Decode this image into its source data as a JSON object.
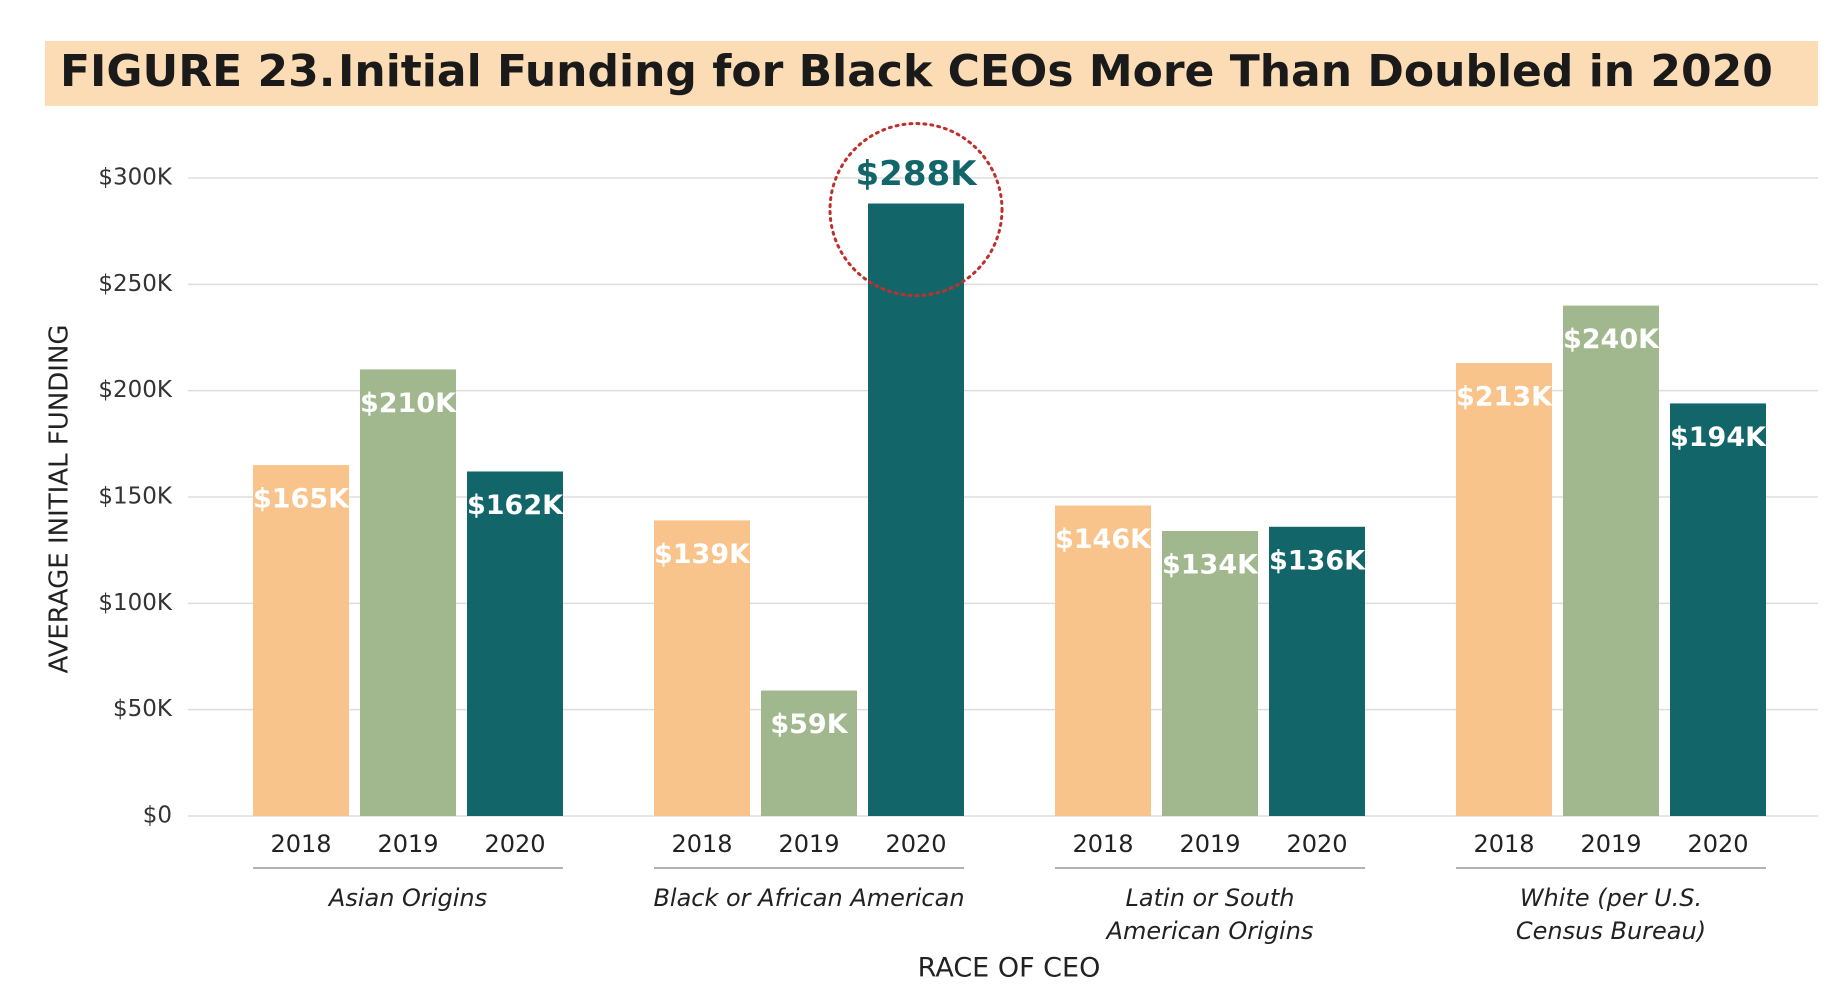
{
  "chart_data": {
    "type": "bar",
    "figure_label": "FIGURE 23.",
    "title": "Initial Funding for Black CEOs More Than Doubled in 2020",
    "y_label": "AVERAGE INITIAL FUNDING",
    "x_label": "RACE OF CEO",
    "categories": [
      "Asian Origins",
      "Black or African American",
      "Latin or South\nAmerican Origins",
      "White (per U.S.\nCensus Bureau)"
    ],
    "series": [
      {
        "name": "2018",
        "color": "#f9c48b",
        "values": [
          165,
          139,
          146,
          213
        ],
        "value_labels": [
          "$165K",
          "$139K",
          "$146K",
          "$213K"
        ]
      },
      {
        "name": "2019",
        "color": "#a1b78d",
        "values": [
          210,
          59,
          134,
          240
        ],
        "value_labels": [
          "$210K",
          "$59K",
          "$134K",
          "$240K"
        ]
      },
      {
        "name": "2020",
        "color": "#12666a",
        "values": [
          162,
          288,
          136,
          194
        ],
        "value_labels": [
          "$162K",
          "$288K",
          "$136K",
          "$194K"
        ]
      }
    ],
    "ylim": [
      0,
      300
    ],
    "yticks": [
      {
        "value": 0,
        "label": "$0"
      },
      {
        "value": 50,
        "label": "$50K"
      },
      {
        "value": 100,
        "label": "$100K"
      },
      {
        "value": 150,
        "label": "$150K"
      },
      {
        "value": 200,
        "label": "$200K"
      },
      {
        "value": 250,
        "label": "$250K"
      },
      {
        "value": 300,
        "label": "$300K"
      }
    ],
    "grid": true
  }
}
